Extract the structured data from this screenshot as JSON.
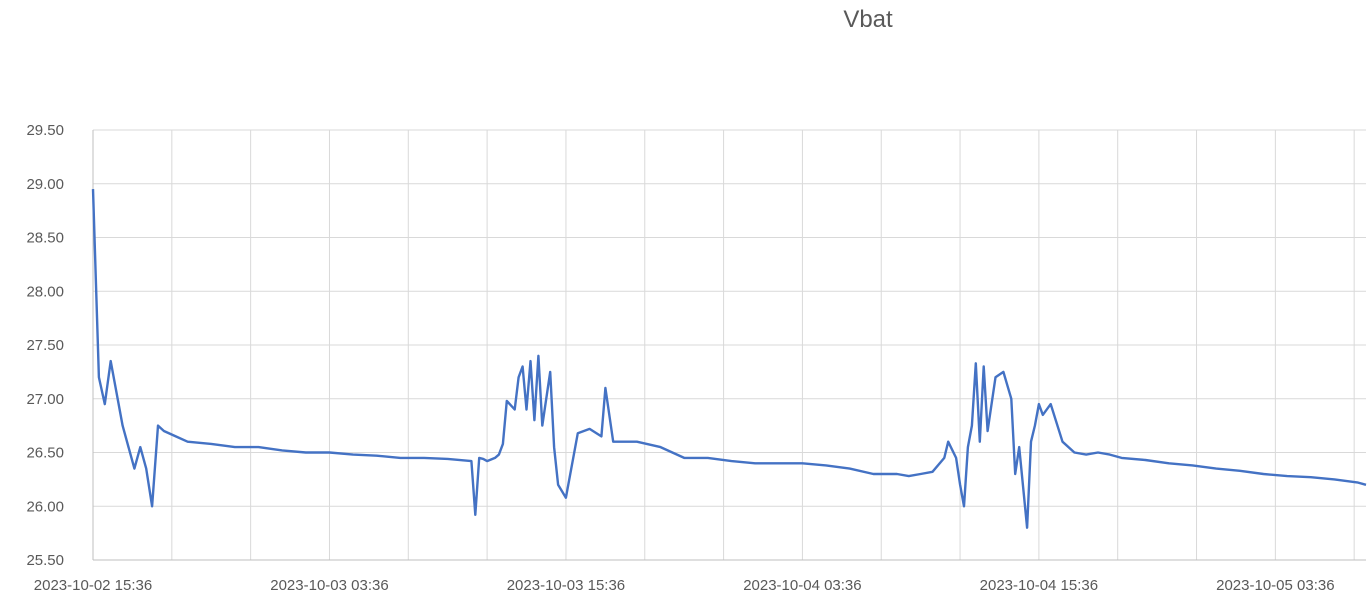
{
  "chart_data": {
    "type": "line",
    "title": "Vbat",
    "xlabel": "",
    "ylabel": "",
    "ylim": [
      25.5,
      29.5
    ],
    "y_ticks": [
      "25.50",
      "26.00",
      "26.50",
      "27.00",
      "27.50",
      "28.00",
      "28.50",
      "29.00",
      "29.50"
    ],
    "x_range": [
      "2023-10-02 15:36",
      "2023-10-05 08:12"
    ],
    "x_tick_labels": [
      "2023-10-02 15:36",
      "2023-10-03 03:36",
      "2023-10-03 15:36",
      "2023-10-04 03:36",
      "2023-10-04 15:36",
      "2023-10-05 03:36"
    ],
    "grid": true,
    "line_color": "#4472C4",
    "series": [
      {
        "x": [
          "2023-10-02 15:36",
          "2023-10-02 15:54",
          "2023-10-02 16:12",
          "2023-10-02 16:30",
          "2023-10-02 17:06",
          "2023-10-02 17:42",
          "2023-10-02 18:00",
          "2023-10-02 18:18",
          "2023-10-02 18:36",
          "2023-10-02 18:54",
          "2023-10-02 19:12",
          "2023-10-02 19:48",
          "2023-10-02 20:24",
          "2023-10-02 21:36",
          "2023-10-02 22:48",
          "2023-10-03 00:00",
          "2023-10-03 01:12",
          "2023-10-03 02:24",
          "2023-10-03 03:36",
          "2023-10-03 04:48",
          "2023-10-03 06:00",
          "2023-10-03 07:12",
          "2023-10-03 08:24",
          "2023-10-03 09:36",
          "2023-10-03 10:48",
          "2023-10-03 11:00",
          "2023-10-03 11:12",
          "2023-10-03 11:24",
          "2023-10-03 11:36",
          "2023-10-03 12:00",
          "2023-10-03 12:12",
          "2023-10-03 12:24",
          "2023-10-03 12:36",
          "2023-10-03 13:00",
          "2023-10-03 13:12",
          "2023-10-03 13:24",
          "2023-10-03 13:36",
          "2023-10-03 13:48",
          "2023-10-03 14:00",
          "2023-10-03 14:12",
          "2023-10-03 14:24",
          "2023-10-03 14:48",
          "2023-10-03 15:00",
          "2023-10-03 15:12",
          "2023-10-03 15:36",
          "2023-10-03 16:12",
          "2023-10-03 16:48",
          "2023-10-03 17:24",
          "2023-10-03 17:36",
          "2023-10-03 18:00",
          "2023-10-03 19:12",
          "2023-10-03 20:24",
          "2023-10-03 21:36",
          "2023-10-03 22:48",
          "2023-10-04 00:00",
          "2023-10-04 01:12",
          "2023-10-04 02:24",
          "2023-10-04 03:36",
          "2023-10-04 04:48",
          "2023-10-04 06:00",
          "2023-10-04 07:12",
          "2023-10-04 08:24",
          "2023-10-04 09:00",
          "2023-10-04 09:36",
          "2023-10-04 10:12",
          "2023-10-04 10:48",
          "2023-10-04 11:00",
          "2023-10-04 11:24",
          "2023-10-04 11:36",
          "2023-10-04 11:48",
          "2023-10-04 12:00",
          "2023-10-04 12:12",
          "2023-10-04 12:24",
          "2023-10-04 12:36",
          "2023-10-04 12:48",
          "2023-10-04 13:00",
          "2023-10-04 13:24",
          "2023-10-04 13:48",
          "2023-10-04 14:12",
          "2023-10-04 14:24",
          "2023-10-04 14:36",
          "2023-10-04 15:00",
          "2023-10-04 15:12",
          "2023-10-04 15:24",
          "2023-10-04 15:36",
          "2023-10-04 15:48",
          "2023-10-04 16:12",
          "2023-10-04 16:48",
          "2023-10-04 17:24",
          "2023-10-04 18:00",
          "2023-10-04 18:36",
          "2023-10-04 19:12",
          "2023-10-04 19:48",
          "2023-10-04 21:00",
          "2023-10-04 22:12",
          "2023-10-04 23:24",
          "2023-10-05 00:36",
          "2023-10-05 01:48",
          "2023-10-05 03:00",
          "2023-10-05 04:12",
          "2023-10-05 05:24",
          "2023-10-05 06:36",
          "2023-10-05 07:48",
          "2023-10-05 08:12"
        ],
        "y": [
          28.95,
          27.2,
          26.95,
          27.35,
          26.75,
          26.35,
          26.55,
          26.35,
          26.0,
          26.75,
          26.7,
          26.65,
          26.6,
          26.58,
          26.55,
          26.55,
          26.52,
          26.5,
          26.5,
          26.48,
          26.47,
          26.45,
          26.45,
          26.44,
          26.42,
          25.92,
          26.45,
          26.44,
          26.42,
          26.45,
          26.48,
          26.58,
          26.98,
          26.9,
          27.2,
          27.3,
          26.9,
          27.35,
          26.8,
          27.4,
          26.75,
          27.25,
          26.55,
          26.2,
          26.08,
          26.68,
          26.72,
          26.65,
          27.1,
          26.6,
          26.6,
          26.55,
          26.45,
          26.45,
          26.42,
          26.4,
          26.4,
          26.4,
          26.38,
          26.35,
          26.3,
          26.3,
          26.28,
          26.3,
          26.32,
          26.45,
          26.6,
          26.45,
          26.2,
          26.0,
          26.55,
          26.75,
          27.33,
          26.6,
          27.3,
          26.7,
          27.2,
          27.25,
          27.0,
          26.3,
          26.55,
          25.8,
          26.6,
          26.75,
          26.95,
          26.85,
          26.95,
          26.6,
          26.5,
          26.48,
          26.5,
          26.48,
          26.45,
          26.43,
          26.4,
          26.38,
          26.35,
          26.33,
          26.3,
          26.28,
          26.27,
          26.25,
          26.22,
          26.2
        ]
      }
    ]
  }
}
